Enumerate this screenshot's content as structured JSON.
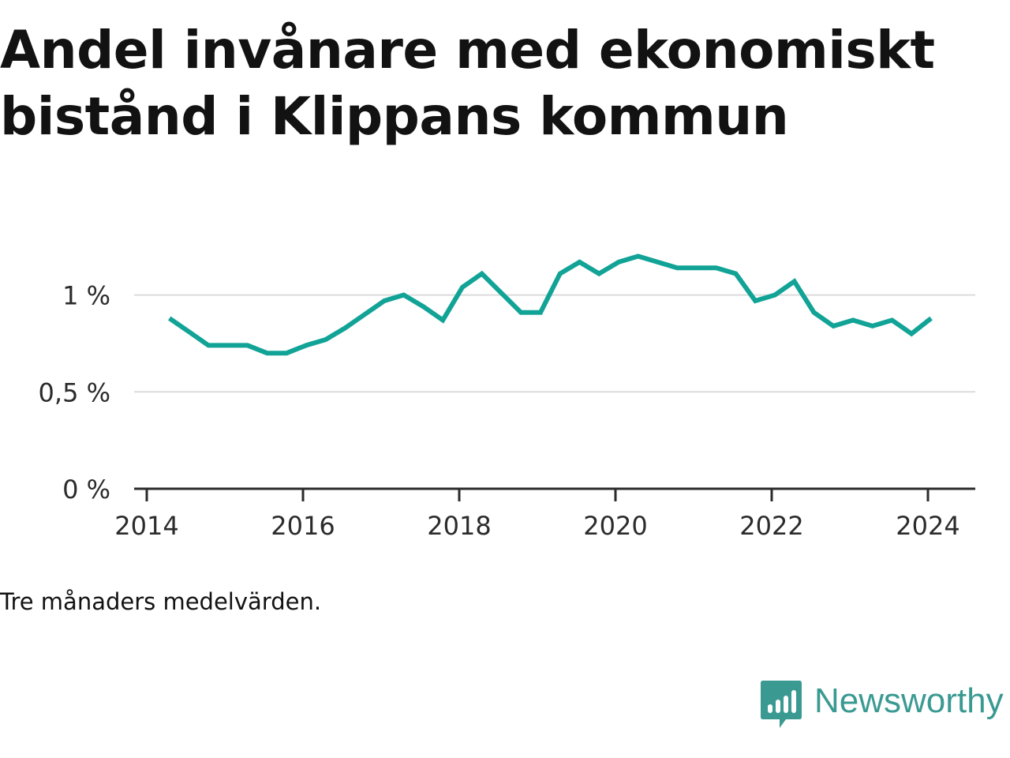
{
  "title_lines": [
    "Andel invånare med ekonomiskt",
    "bistånd i Klippans kommun"
  ],
  "note": "Tre månaders medelvärden.",
  "brand": {
    "name": "Newsworthy",
    "icon": "bar-chart-speech-bubble-icon",
    "color": "#3a9a92"
  },
  "chart_data": {
    "type": "line",
    "title": "Andel invånare med ekonomiskt bistånd i Klippans kommun",
    "xlabel": "",
    "ylabel": "",
    "x_ticks": [
      "2014",
      "2016",
      "2018",
      "2020",
      "2022",
      "2024"
    ],
    "y_ticks": [
      {
        "value": 0,
        "label": "0 %"
      },
      {
        "value": 0.5,
        "label": "0,5 %"
      },
      {
        "value": 1,
        "label": "1 %"
      }
    ],
    "xlim": [
      2014.0,
      2024.6
    ],
    "ylim": [
      0,
      1.3
    ],
    "grid": true,
    "line_color": "#12a397",
    "series": [
      {
        "name": "",
        "points": [
          [
            2014.29,
            0.88
          ],
          [
            2014.54,
            0.81
          ],
          [
            2014.79,
            0.74
          ],
          [
            2015.04,
            0.74
          ],
          [
            2015.29,
            0.74
          ],
          [
            2015.54,
            0.7
          ],
          [
            2015.79,
            0.7
          ],
          [
            2016.04,
            0.74
          ],
          [
            2016.29,
            0.77
          ],
          [
            2016.54,
            0.83
          ],
          [
            2016.79,
            0.9
          ],
          [
            2017.04,
            0.97
          ],
          [
            2017.29,
            1.0
          ],
          [
            2017.54,
            0.94
          ],
          [
            2017.79,
            0.87
          ],
          [
            2018.04,
            1.04
          ],
          [
            2018.29,
            1.11
          ],
          [
            2018.54,
            1.01
          ],
          [
            2018.79,
            0.91
          ],
          [
            2019.04,
            0.91
          ],
          [
            2019.29,
            1.11
          ],
          [
            2019.54,
            1.17
          ],
          [
            2019.79,
            1.11
          ],
          [
            2020.04,
            1.17
          ],
          [
            2020.29,
            1.2
          ],
          [
            2020.54,
            1.17
          ],
          [
            2020.79,
            1.14
          ],
          [
            2021.04,
            1.14
          ],
          [
            2021.29,
            1.14
          ],
          [
            2021.54,
            1.11
          ],
          [
            2021.79,
            0.97
          ],
          [
            2022.04,
            1.0
          ],
          [
            2022.29,
            1.07
          ],
          [
            2022.54,
            0.91
          ],
          [
            2022.79,
            0.84
          ],
          [
            2023.04,
            0.87
          ],
          [
            2023.29,
            0.84
          ],
          [
            2023.54,
            0.87
          ],
          [
            2023.79,
            0.8
          ],
          [
            2024.04,
            0.88
          ]
        ]
      }
    ]
  }
}
